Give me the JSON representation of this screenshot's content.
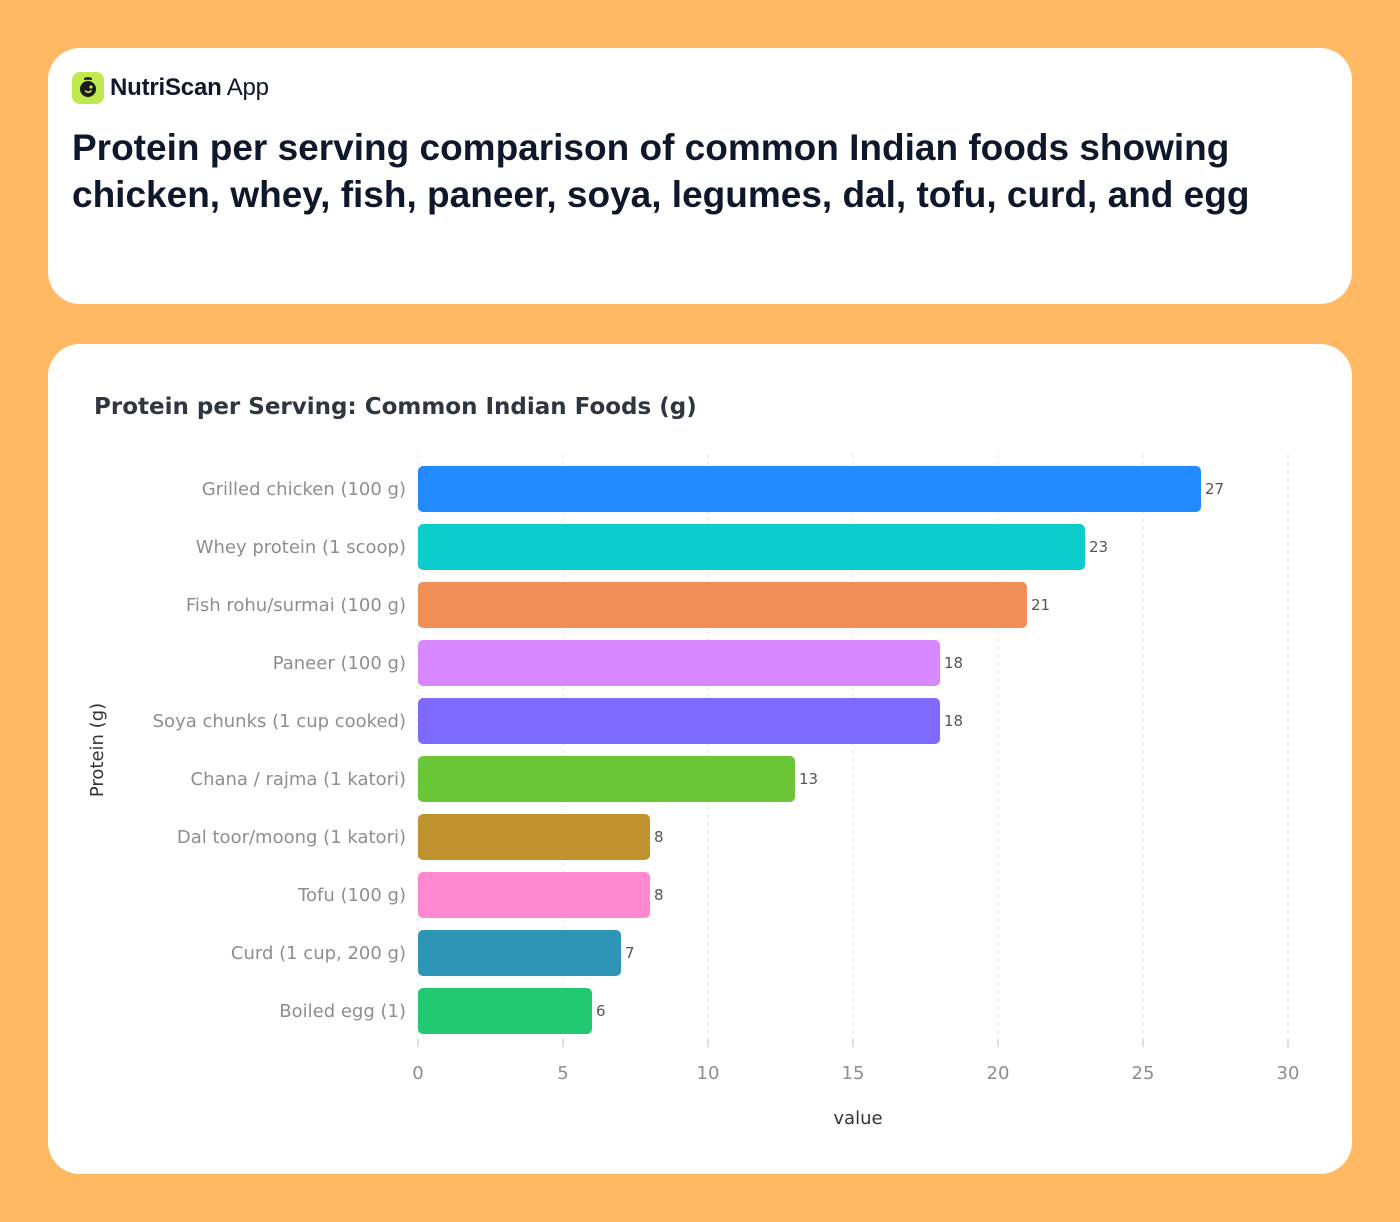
{
  "brand": {
    "name_bold": "NutriScan",
    "name_regular": "App",
    "icon": "leaf-face-icon",
    "icon_color": "#BFEA4E"
  },
  "headline": "Protein per serving comparison of common Indian foods showing chicken, whey, fish, paneer, soya, legumes, dal, tofu, curd, and egg",
  "colors": {
    "background": "#FFB963",
    "card": "#FFFFFF"
  },
  "chart_data": {
    "type": "bar",
    "orientation": "horizontal",
    "title": "Protein per Serving: Common Indian Foods (g)",
    "xlabel": "value",
    "ylabel": "Protein (g)",
    "xlim": [
      0,
      30
    ],
    "xticks": [
      0,
      5,
      10,
      15,
      20,
      25,
      30
    ],
    "grid": "vertical dashed",
    "categories": [
      "Grilled chicken (100 g)",
      "Whey protein (1 scoop)",
      "Fish rohu/surmai (100 g)",
      "Paneer (100 g)",
      "Soya chunks (1 cup cooked)",
      "Chana / rajma (1 katori)",
      "Dal toor/moong (1 katori)",
      "Tofu (100 g)",
      "Curd (1 cup, 200 g)",
      "Boiled egg (1)"
    ],
    "values": [
      27,
      23,
      21,
      18,
      18,
      13,
      8,
      8,
      7,
      6
    ],
    "colors": [
      "#2389FF",
      "#0CCCCC",
      "#EF8E56",
      "#D787FF",
      "#7F6AFF",
      "#6AC637",
      "#C09230",
      "#FF88CF",
      "#2F95B6",
      "#22C872"
    ]
  }
}
